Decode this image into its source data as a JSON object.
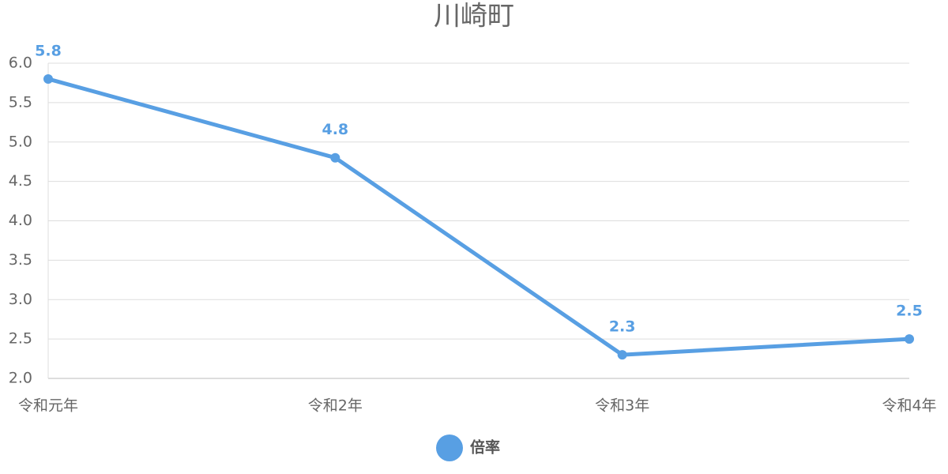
{
  "chart_data": {
    "type": "line",
    "title": "川崎町",
    "categories": [
      "令和元年",
      "令和2年",
      "令和3年",
      "令和4年"
    ],
    "series": [
      {
        "name": "倍率",
        "color": "#589fe3",
        "values": [
          5.8,
          4.8,
          2.3,
          2.5
        ]
      }
    ],
    "ylim": [
      2.0,
      6.0
    ],
    "yticks": [
      {
        "value": 2,
        "label": "2.0"
      },
      2.5,
      {
        "value": 3,
        "label": "3.0"
      },
      3.5,
      {
        "value": 4,
        "label": "4.0"
      },
      4.5,
      {
        "value": 5,
        "label": "5.0"
      },
      5.5,
      {
        "value": 6,
        "label": "6.0"
      }
    ],
    "grid": true,
    "legend": "bottom"
  }
}
